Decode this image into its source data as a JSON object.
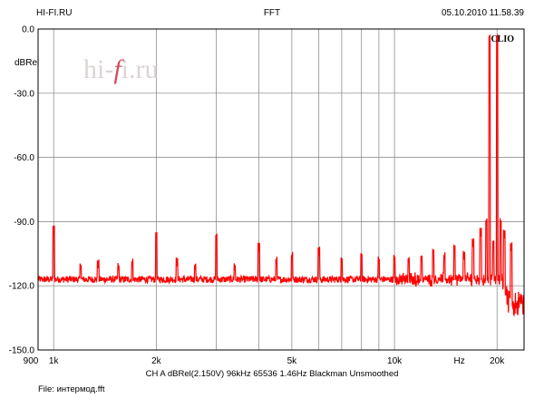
{
  "header": {
    "left": "HI-FI.RU",
    "center": "FFT",
    "right": "05.10.2010 11.58.39"
  },
  "brand": {
    "watermark": "hi-fi.ru",
    "clio": "CLIO"
  },
  "footer": {
    "info": "CH A   dBRel(2.150V)   96kHz   65536   1.46Hz   Blackman   Unsmoothed",
    "file": "File: интермод.fft"
  },
  "colors": {
    "trace": "#ff0000",
    "grid": "#808080",
    "watermark_accent": "#d05060"
  },
  "chart_data": {
    "type": "line",
    "title": "FFT",
    "xlabel": "Hz",
    "ylabel": "dBRel",
    "x_scale": "log",
    "xlim": [
      900,
      24000
    ],
    "ylim": [
      -150,
      0
    ],
    "x_tick_labels": [
      {
        "value": 900,
        "label": "900"
      },
      {
        "value": 1000,
        "label": "1k"
      },
      {
        "value": 2000,
        "label": "2k"
      },
      {
        "value": 5000,
        "label": "5k"
      },
      {
        "value": 10000,
        "label": "10k"
      },
      {
        "value": 20000,
        "label": "20k"
      }
    ],
    "x_unit_label": "Hz",
    "y_ticks": [
      0,
      -30,
      -60,
      -90,
      -120,
      -150
    ],
    "y_tick_labels": [
      "0.0",
      "-30.0",
      "-60.0",
      "-90.0",
      "-120.0",
      "-150.0"
    ],
    "grid": true,
    "noise_floor_db": -117,
    "rolloff_start_hz": 20800,
    "rolloff_floor_db": -128,
    "series": [
      {
        "name": "CH A",
        "peaks": [
          {
            "hz": 1000,
            "db": -96
          },
          {
            "hz": 1200,
            "db": -113
          },
          {
            "hz": 1350,
            "db": -112
          },
          {
            "hz": 1550,
            "db": -113
          },
          {
            "hz": 1700,
            "db": -111
          },
          {
            "hz": 2000,
            "db": -98
          },
          {
            "hz": 2300,
            "db": -111
          },
          {
            "hz": 2600,
            "db": -113
          },
          {
            "hz": 3000,
            "db": -99
          },
          {
            "hz": 3400,
            "db": -113
          },
          {
            "hz": 4000,
            "db": -104
          },
          {
            "hz": 4500,
            "db": -110
          },
          {
            "hz": 5000,
            "db": -108
          },
          {
            "hz": 6000,
            "db": -106
          },
          {
            "hz": 7000,
            "db": -110
          },
          {
            "hz": 8000,
            "db": -108
          },
          {
            "hz": 9000,
            "db": -110
          },
          {
            "hz": 10000,
            "db": -109
          },
          {
            "hz": 11000,
            "db": -110
          },
          {
            "hz": 12000,
            "db": -109
          },
          {
            "hz": 13000,
            "db": -106
          },
          {
            "hz": 14000,
            "db": -108
          },
          {
            "hz": 15000,
            "db": -104
          },
          {
            "hz": 16000,
            "db": -108
          },
          {
            "hz": 17000,
            "db": -102
          },
          {
            "hz": 17900,
            "db": -97
          },
          {
            "hz": 18600,
            "db": -92
          },
          {
            "hz": 19000,
            "db": -6
          },
          {
            "hz": 19500,
            "db": -102
          },
          {
            "hz": 20000,
            "db": -6
          },
          {
            "hz": 20500,
            "db": -92
          },
          {
            "hz": 21000,
            "db": -98
          },
          {
            "hz": 22000,
            "db": -104
          }
        ]
      }
    ]
  }
}
